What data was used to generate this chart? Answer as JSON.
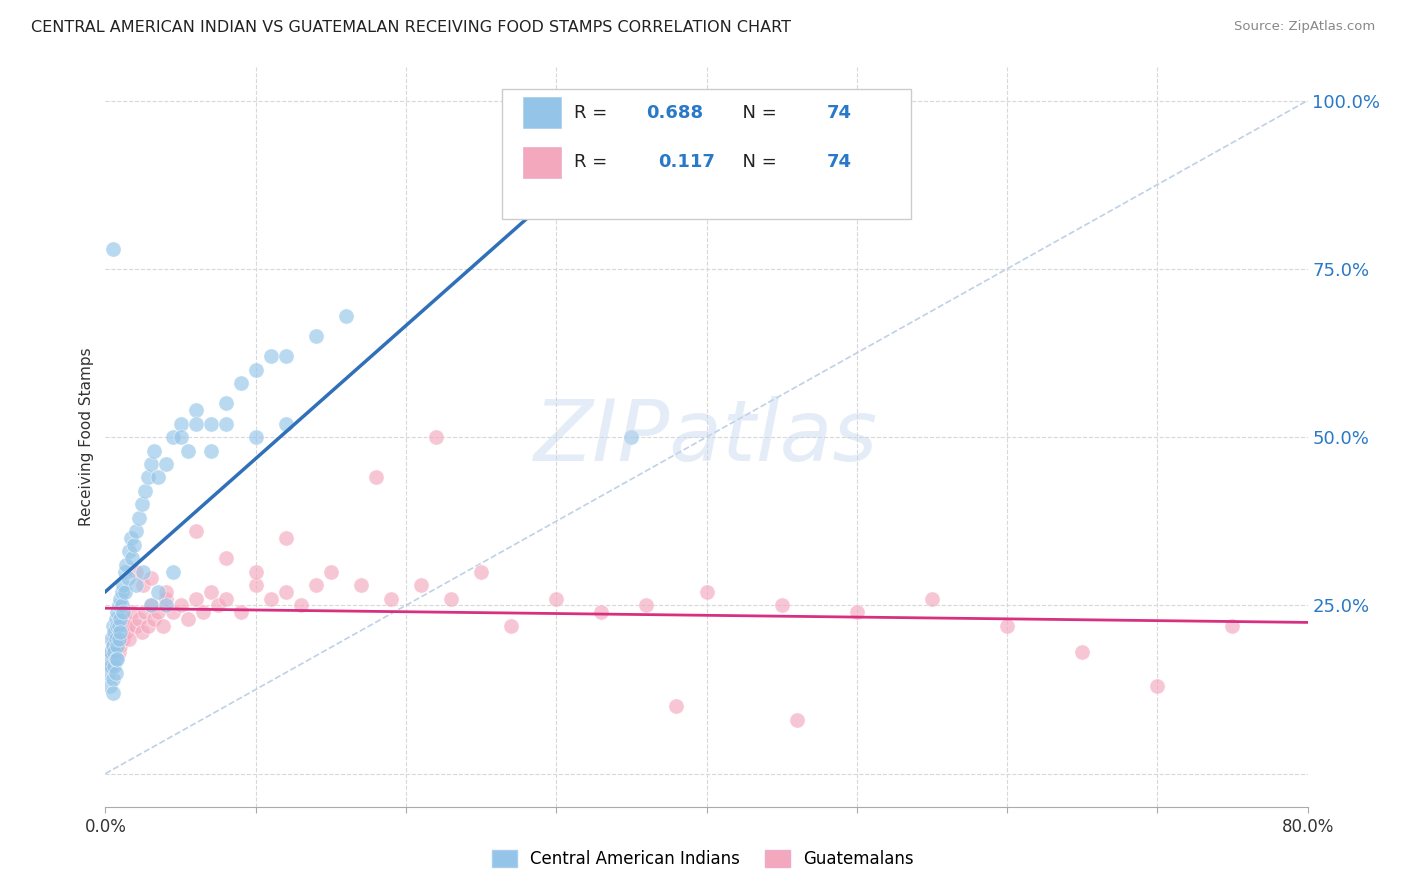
{
  "title": "CENTRAL AMERICAN INDIAN VS GUATEMALAN RECEIVING FOOD STAMPS CORRELATION CHART",
  "source": "Source: ZipAtlas.com",
  "ylabel": "Receiving Food Stamps",
  "ytick_vals": [
    0.0,
    0.25,
    0.5,
    0.75,
    1.0
  ],
  "ytick_labels": [
    "",
    "25.0%",
    "50.0%",
    "75.0%",
    "100.0%"
  ],
  "xrange": [
    0.0,
    0.8
  ],
  "yrange": [
    -0.05,
    1.05
  ],
  "legend1_R": "0.688",
  "legend1_N": "74",
  "legend2_R": "0.117",
  "legend2_N": "74",
  "legend_label1": "Central American Indians",
  "legend_label2": "Guatemalans",
  "blue_scatter_color": "#94c5e8",
  "pink_scatter_color": "#f4a8be",
  "blue_line_color": "#3070b8",
  "pink_line_color": "#d83080",
  "diag_color": "#b8cce4",
  "watermark_text": "ZIPatlas",
  "blue_x": [
    0.002,
    0.003,
    0.003,
    0.004,
    0.004,
    0.004,
    0.005,
    0.005,
    0.005,
    0.005,
    0.006,
    0.006,
    0.006,
    0.007,
    0.007,
    0.007,
    0.007,
    0.008,
    0.008,
    0.008,
    0.008,
    0.009,
    0.009,
    0.009,
    0.01,
    0.01,
    0.01,
    0.011,
    0.011,
    0.012,
    0.012,
    0.013,
    0.013,
    0.014,
    0.015,
    0.016,
    0.017,
    0.018,
    0.019,
    0.02,
    0.022,
    0.024,
    0.026,
    0.028,
    0.03,
    0.032,
    0.035,
    0.04,
    0.045,
    0.05,
    0.055,
    0.06,
    0.07,
    0.08,
    0.09,
    0.1,
    0.11,
    0.12,
    0.14,
    0.16,
    0.02,
    0.025,
    0.03,
    0.035,
    0.04,
    0.045,
    0.05,
    0.06,
    0.07,
    0.08,
    0.1,
    0.12,
    0.005,
    0.35
  ],
  "blue_y": [
    0.15,
    0.17,
    0.13,
    0.18,
    0.2,
    0.16,
    0.22,
    0.19,
    0.14,
    0.12,
    0.21,
    0.18,
    0.16,
    0.23,
    0.2,
    0.17,
    0.15,
    0.24,
    0.22,
    0.19,
    0.17,
    0.25,
    0.22,
    0.2,
    0.26,
    0.23,
    0.21,
    0.27,
    0.25,
    0.28,
    0.24,
    0.3,
    0.27,
    0.31,
    0.29,
    0.33,
    0.35,
    0.32,
    0.34,
    0.36,
    0.38,
    0.4,
    0.42,
    0.44,
    0.46,
    0.48,
    0.44,
    0.46,
    0.5,
    0.52,
    0.48,
    0.54,
    0.52,
    0.55,
    0.58,
    0.6,
    0.62,
    0.62,
    0.65,
    0.68,
    0.28,
    0.3,
    0.25,
    0.27,
    0.25,
    0.3,
    0.5,
    0.52,
    0.48,
    0.52,
    0.5,
    0.52,
    0.78,
    0.5
  ],
  "pink_x": [
    0.003,
    0.004,
    0.005,
    0.005,
    0.006,
    0.006,
    0.007,
    0.007,
    0.008,
    0.008,
    0.009,
    0.01,
    0.01,
    0.011,
    0.012,
    0.013,
    0.014,
    0.015,
    0.016,
    0.018,
    0.02,
    0.022,
    0.024,
    0.026,
    0.028,
    0.03,
    0.032,
    0.035,
    0.038,
    0.04,
    0.045,
    0.05,
    0.055,
    0.06,
    0.065,
    0.07,
    0.075,
    0.08,
    0.09,
    0.1,
    0.11,
    0.12,
    0.13,
    0.14,
    0.15,
    0.17,
    0.19,
    0.21,
    0.23,
    0.25,
    0.27,
    0.3,
    0.33,
    0.36,
    0.4,
    0.45,
    0.5,
    0.55,
    0.6,
    0.65,
    0.7,
    0.75,
    0.02,
    0.025,
    0.03,
    0.04,
    0.06,
    0.08,
    0.1,
    0.12,
    0.18,
    0.22,
    0.38,
    0.46
  ],
  "pink_y": [
    0.16,
    0.18,
    0.19,
    0.17,
    0.2,
    0.18,
    0.21,
    0.19,
    0.22,
    0.2,
    0.18,
    0.21,
    0.19,
    0.22,
    0.2,
    0.23,
    0.21,
    0.22,
    0.2,
    0.24,
    0.22,
    0.23,
    0.21,
    0.24,
    0.22,
    0.25,
    0.23,
    0.24,
    0.22,
    0.26,
    0.24,
    0.25,
    0.23,
    0.26,
    0.24,
    0.27,
    0.25,
    0.26,
    0.24,
    0.28,
    0.26,
    0.27,
    0.25,
    0.28,
    0.3,
    0.28,
    0.26,
    0.28,
    0.26,
    0.3,
    0.22,
    0.26,
    0.24,
    0.25,
    0.27,
    0.25,
    0.24,
    0.26,
    0.22,
    0.18,
    0.13,
    0.22,
    0.3,
    0.28,
    0.29,
    0.27,
    0.36,
    0.32,
    0.3,
    0.35,
    0.44,
    0.5,
    0.1,
    0.08
  ]
}
